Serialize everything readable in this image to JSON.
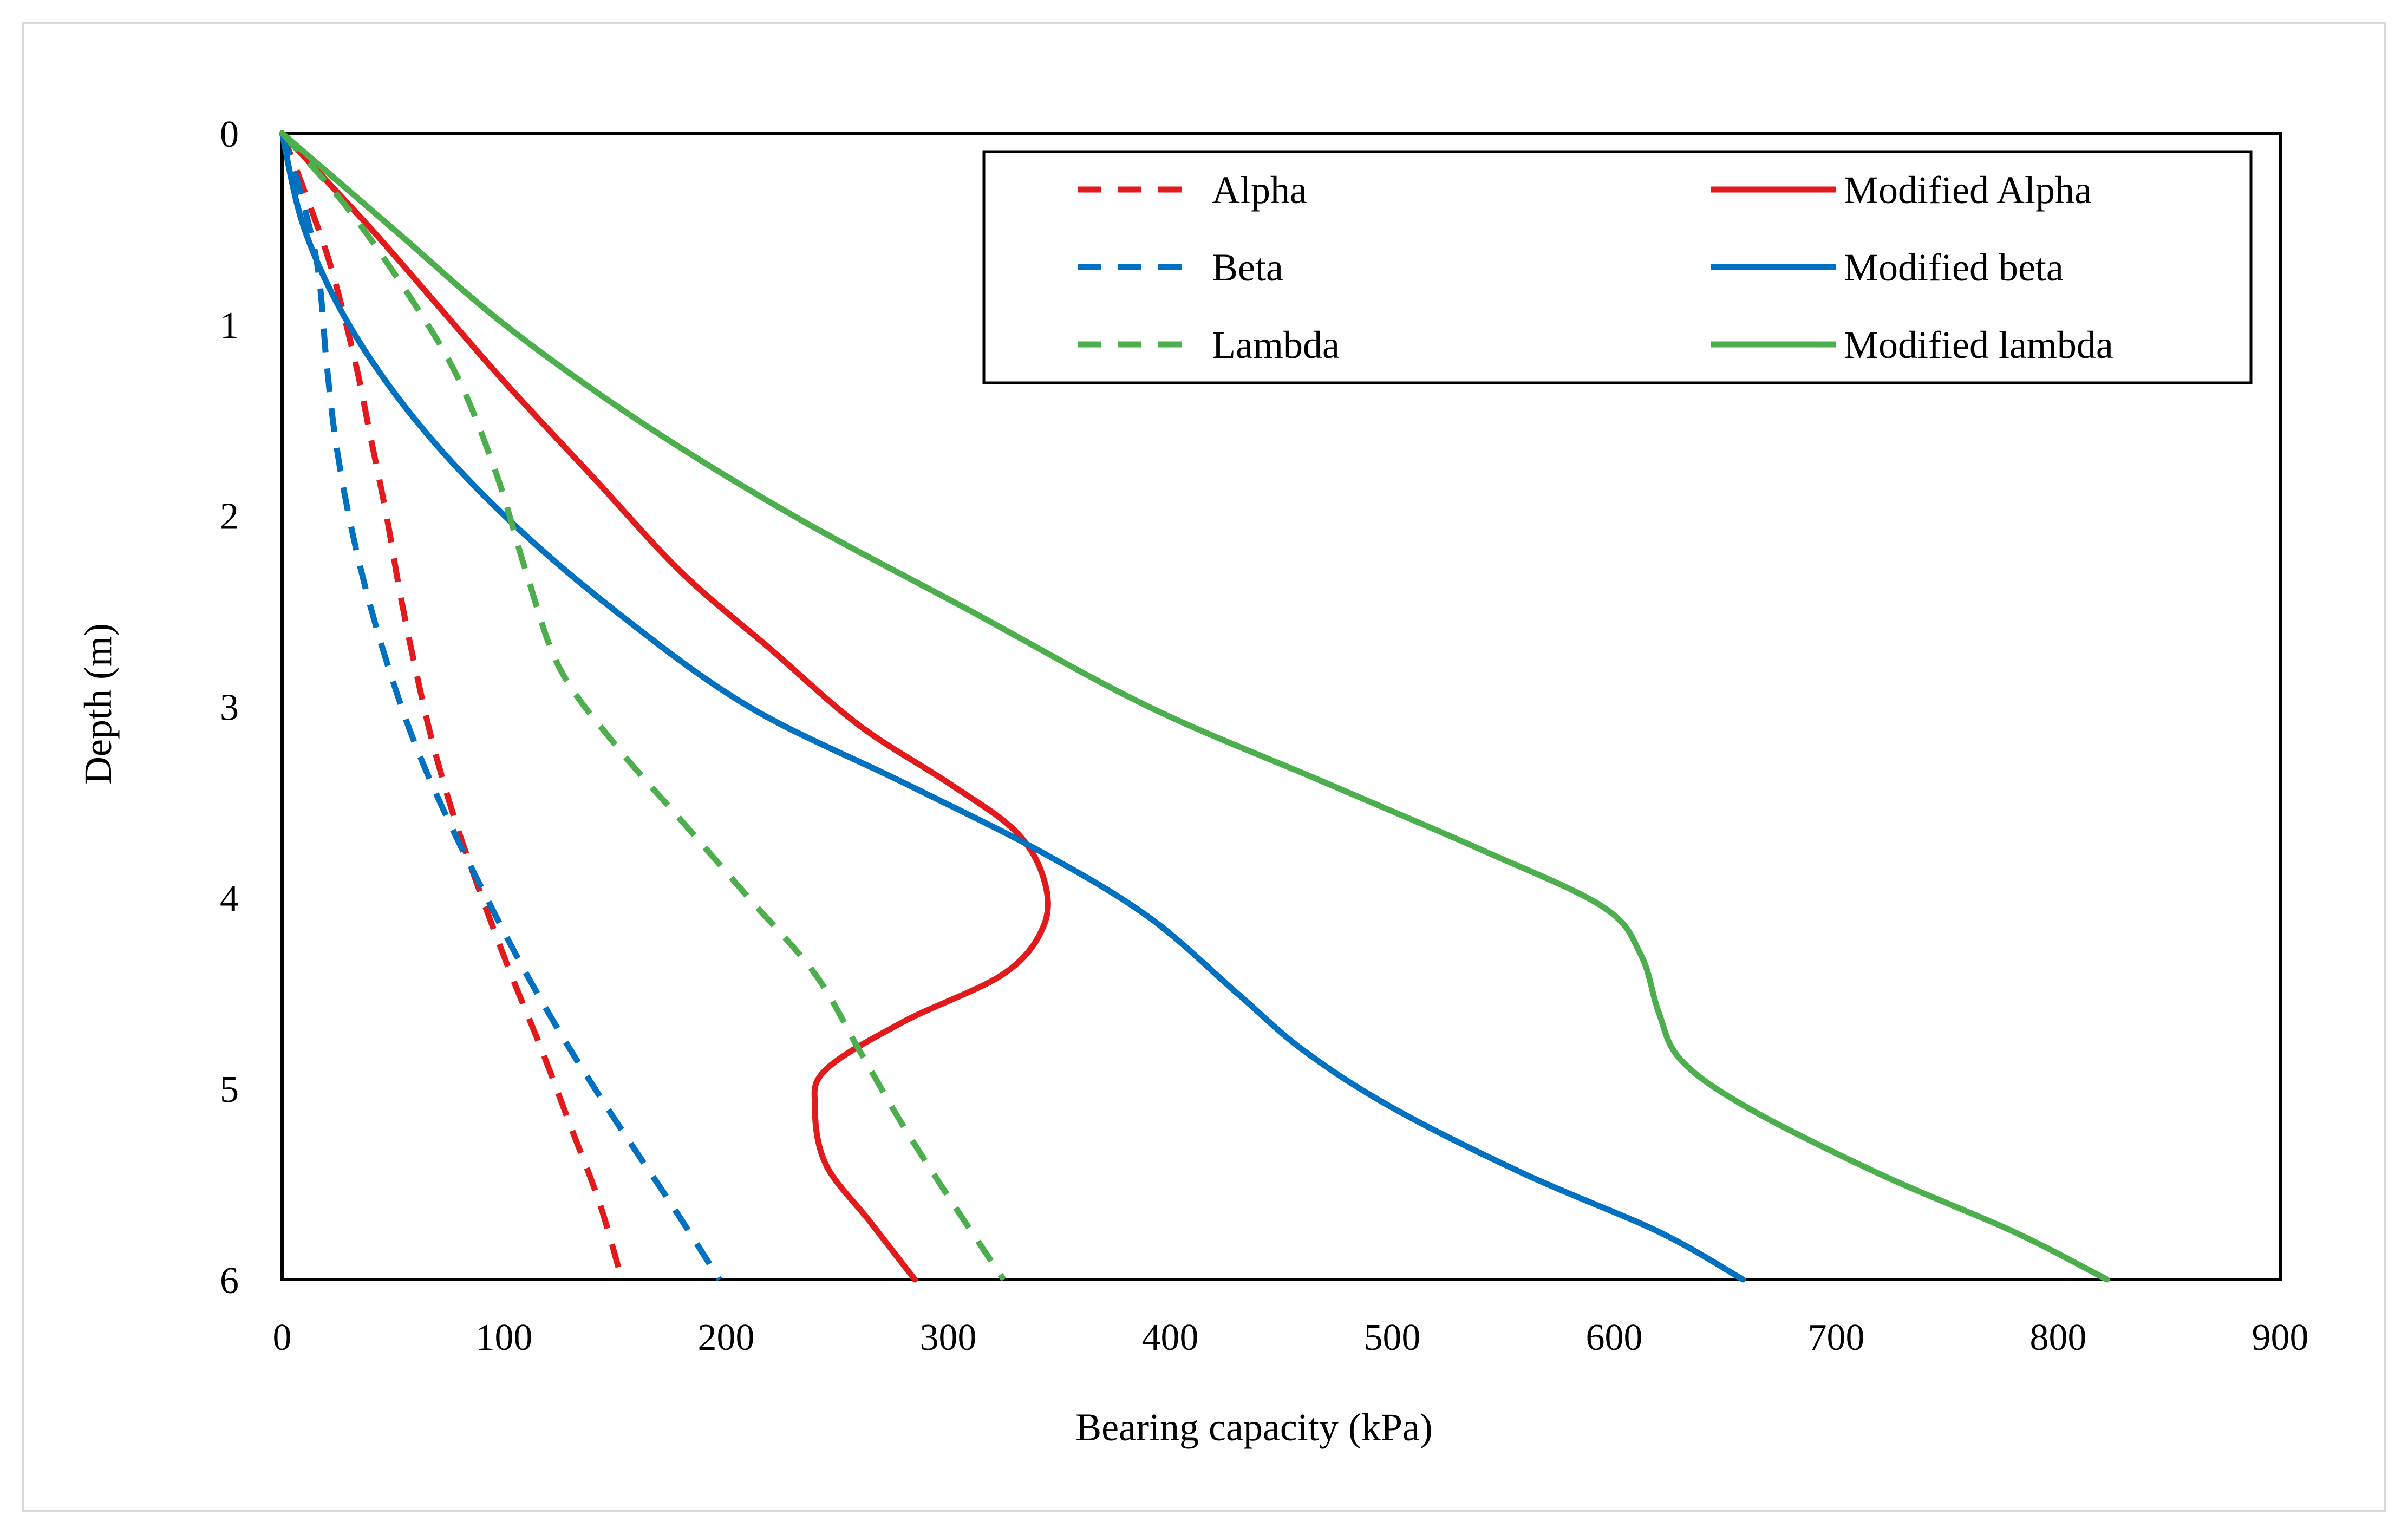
{
  "chart_data": {
    "type": "line",
    "title": "",
    "xlabel": "Bearing capacity (kPa)",
    "ylabel": "Depth (m)",
    "xlim": [
      0,
      900
    ],
    "ylim": [
      0,
      6
    ],
    "y_inverted": true,
    "grid": false,
    "legend_position": "top-right",
    "x_ticks": [
      "0",
      "100",
      "200",
      "300",
      "400",
      "500",
      "600",
      "700",
      "800",
      "900"
    ],
    "y_ticks": [
      "0",
      "1",
      "2",
      "3",
      "4",
      "5",
      "6"
    ],
    "series": [
      {
        "name": "Alpha",
        "color": "#e31a1c",
        "style": "dashed",
        "points": [
          [
            0,
            0
          ],
          [
            10,
            0.3
          ],
          [
            22,
            0.7
          ],
          [
            33,
            1.2
          ],
          [
            40,
            1.6
          ],
          [
            47,
            2.0
          ],
          [
            53,
            2.4
          ],
          [
            60,
            2.8
          ],
          [
            68,
            3.2
          ],
          [
            78,
            3.6
          ],
          [
            90,
            4.0
          ],
          [
            103,
            4.4
          ],
          [
            117,
            4.8
          ],
          [
            130,
            5.2
          ],
          [
            143,
            5.6
          ],
          [
            153,
            6.0
          ]
        ]
      },
      {
        "name": "Modified Alpha",
        "color": "#e31a1c",
        "style": "solid",
        "points": [
          [
            0,
            0
          ],
          [
            40,
            0.5
          ],
          [
            70,
            0.9
          ],
          [
            100,
            1.3
          ],
          [
            140,
            1.8
          ],
          [
            180,
            2.3
          ],
          [
            220,
            2.7
          ],
          [
            260,
            3.1
          ],
          [
            300,
            3.4
          ],
          [
            330,
            3.65
          ],
          [
            343,
            3.9
          ],
          [
            343,
            4.15
          ],
          [
            325,
            4.4
          ],
          [
            280,
            4.65
          ],
          [
            245,
            4.9
          ],
          [
            240,
            5.1
          ],
          [
            245,
            5.4
          ],
          [
            265,
            5.7
          ],
          [
            285,
            6.0
          ]
        ]
      },
      {
        "name": "Beta",
        "color": "#0070c0",
        "style": "dashed",
        "points": [
          [
            0,
            0
          ],
          [
            8,
            0.3
          ],
          [
            16,
            0.7
          ],
          [
            20,
            1.2
          ],
          [
            24,
            1.6
          ],
          [
            30,
            2.0
          ],
          [
            38,
            2.4
          ],
          [
            48,
            2.8
          ],
          [
            60,
            3.2
          ],
          [
            75,
            3.6
          ],
          [
            92,
            4.0
          ],
          [
            110,
            4.4
          ],
          [
            130,
            4.8
          ],
          [
            152,
            5.2
          ],
          [
            175,
            5.6
          ],
          [
            197,
            6.0
          ]
        ]
      },
      {
        "name": "Modified beta",
        "color": "#0070c0",
        "style": "solid",
        "points": [
          [
            0,
            0
          ],
          [
            10,
            0.5
          ],
          [
            30,
            1.0
          ],
          [
            60,
            1.5
          ],
          [
            100,
            2.0
          ],
          [
            150,
            2.5
          ],
          [
            210,
            3.0
          ],
          [
            280,
            3.4
          ],
          [
            340,
            3.75
          ],
          [
            390,
            4.1
          ],
          [
            430,
            4.5
          ],
          [
            460,
            4.8
          ],
          [
            500,
            5.1
          ],
          [
            560,
            5.45
          ],
          [
            620,
            5.75
          ],
          [
            658,
            6.0
          ]
        ]
      },
      {
        "name": "Lambda",
        "color": "#4cae4c",
        "style": "dashed",
        "points": [
          [
            0,
            0
          ],
          [
            30,
            0.4
          ],
          [
            60,
            0.9
          ],
          [
            80,
            1.3
          ],
          [
            97,
            1.8
          ],
          [
            110,
            2.3
          ],
          [
            125,
            2.8
          ],
          [
            150,
            3.2
          ],
          [
            180,
            3.6
          ],
          [
            210,
            4.0
          ],
          [
            240,
            4.4
          ],
          [
            260,
            4.8
          ],
          [
            280,
            5.2
          ],
          [
            302,
            5.6
          ],
          [
            325,
            6.0
          ]
        ]
      },
      {
        "name": "Modified lambda",
        "color": "#4cae4c",
        "style": "solid",
        "points": [
          [
            0,
            0
          ],
          [
            50,
            0.5
          ],
          [
            100,
            1.0
          ],
          [
            160,
            1.5
          ],
          [
            230,
            2.0
          ],
          [
            310,
            2.5
          ],
          [
            390,
            3.0
          ],
          [
            470,
            3.4
          ],
          [
            540,
            3.75
          ],
          [
            595,
            4.05
          ],
          [
            612,
            4.3
          ],
          [
            620,
            4.6
          ],
          [
            630,
            4.85
          ],
          [
            660,
            5.1
          ],
          [
            720,
            5.45
          ],
          [
            780,
            5.75
          ],
          [
            822,
            6.0
          ]
        ]
      }
    ],
    "legend": {
      "col1": [
        "Alpha",
        "Beta",
        "Lambda"
      ],
      "col2": [
        "Modified Alpha",
        "Modified beta",
        "Modified lambda"
      ]
    }
  }
}
